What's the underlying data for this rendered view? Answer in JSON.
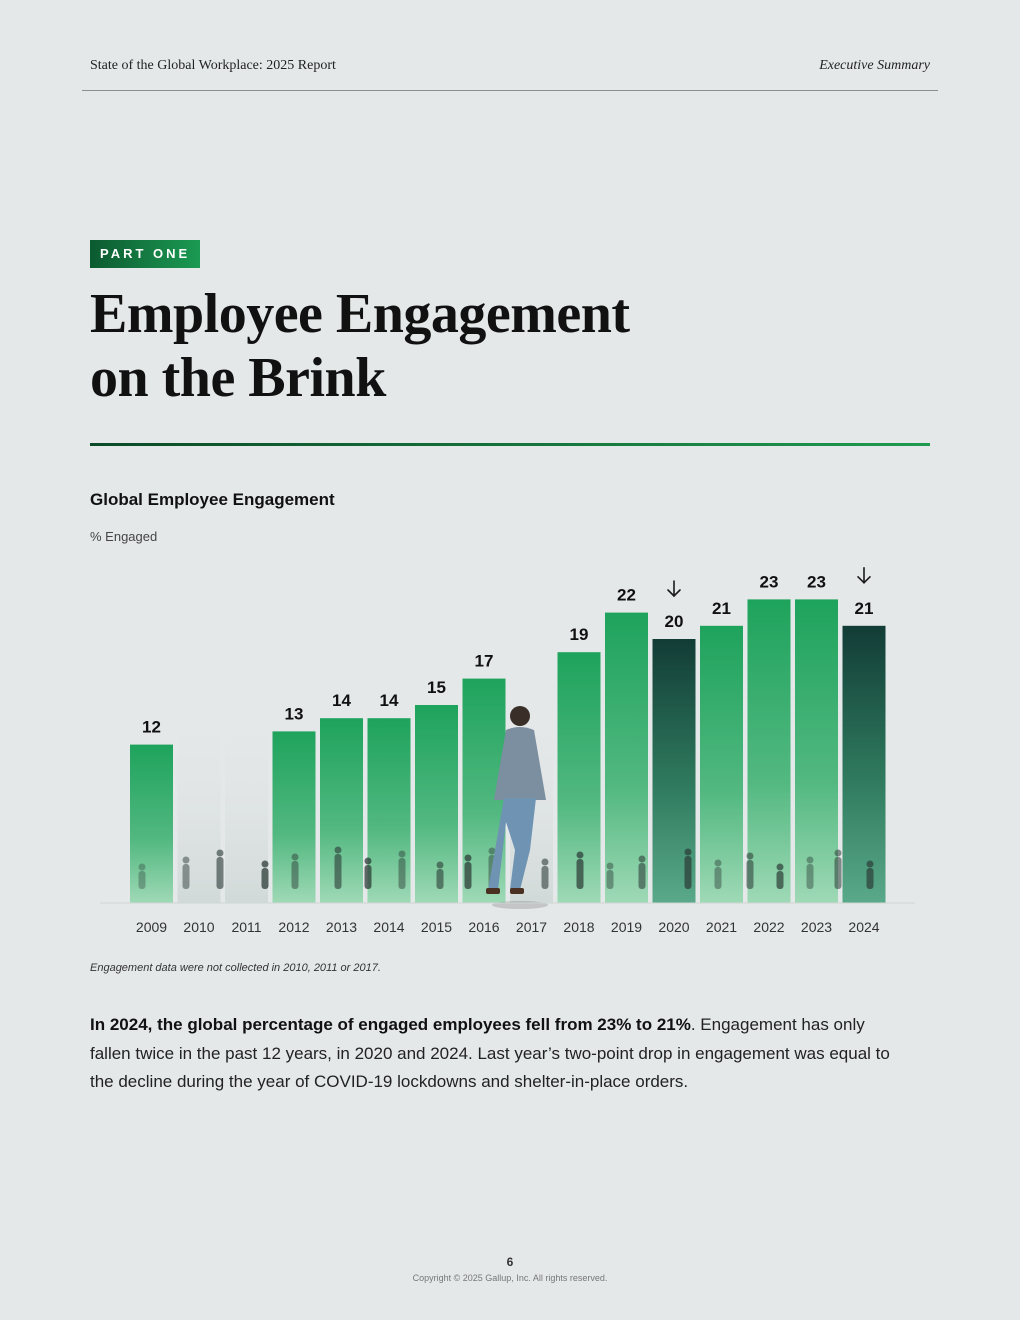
{
  "header": {
    "report_title": "State of the Global Workplace: 2025 Report",
    "section": "Executive Summary"
  },
  "badge": "PART ONE",
  "title": {
    "line1": "Employee Engagement",
    "line2": "on the Brink"
  },
  "chart_data": {
    "type": "bar",
    "title": "Global Employee Engagement",
    "ylabel": "% Engaged",
    "xlabel": "",
    "categories": [
      "2009",
      "2010",
      "2011",
      "2012",
      "2013",
      "2014",
      "2015",
      "2016",
      "2017",
      "2018",
      "2019",
      "2020",
      "2021",
      "2022",
      "2023",
      "2024"
    ],
    "values": [
      12,
      null,
      null,
      13,
      14,
      14,
      15,
      17,
      null,
      19,
      22,
      20,
      21,
      23,
      23,
      21
    ],
    "declines": [
      "2020",
      "2024"
    ],
    "ylim": [
      0,
      23
    ],
    "grid": false,
    "legend": "none",
    "colors": {
      "bar_top": "#1ea35c",
      "bar_bottom": "#9fd9b6",
      "decline_top": "#123c36",
      "decline_bottom": "#5aa98a",
      "decline_arrow": "#1a1a1a"
    }
  },
  "footnote": "Engagement data were not collected in 2010, 2011 or 2017.",
  "body": {
    "lead": "In 2024, the global percentage of engaged employees fell from 23% to 21%",
    "rest": ". Engagement has only fallen twice in the past 12 years, in 2020 and 2024. Last year’s two-point drop in engagement was equal to the decline during the year of COVID-19 lockdowns and shelter-in-place orders."
  },
  "footer": {
    "page_number": "6",
    "copyright": "Copyright © 2025 Gallup, Inc. All rights reserved."
  }
}
